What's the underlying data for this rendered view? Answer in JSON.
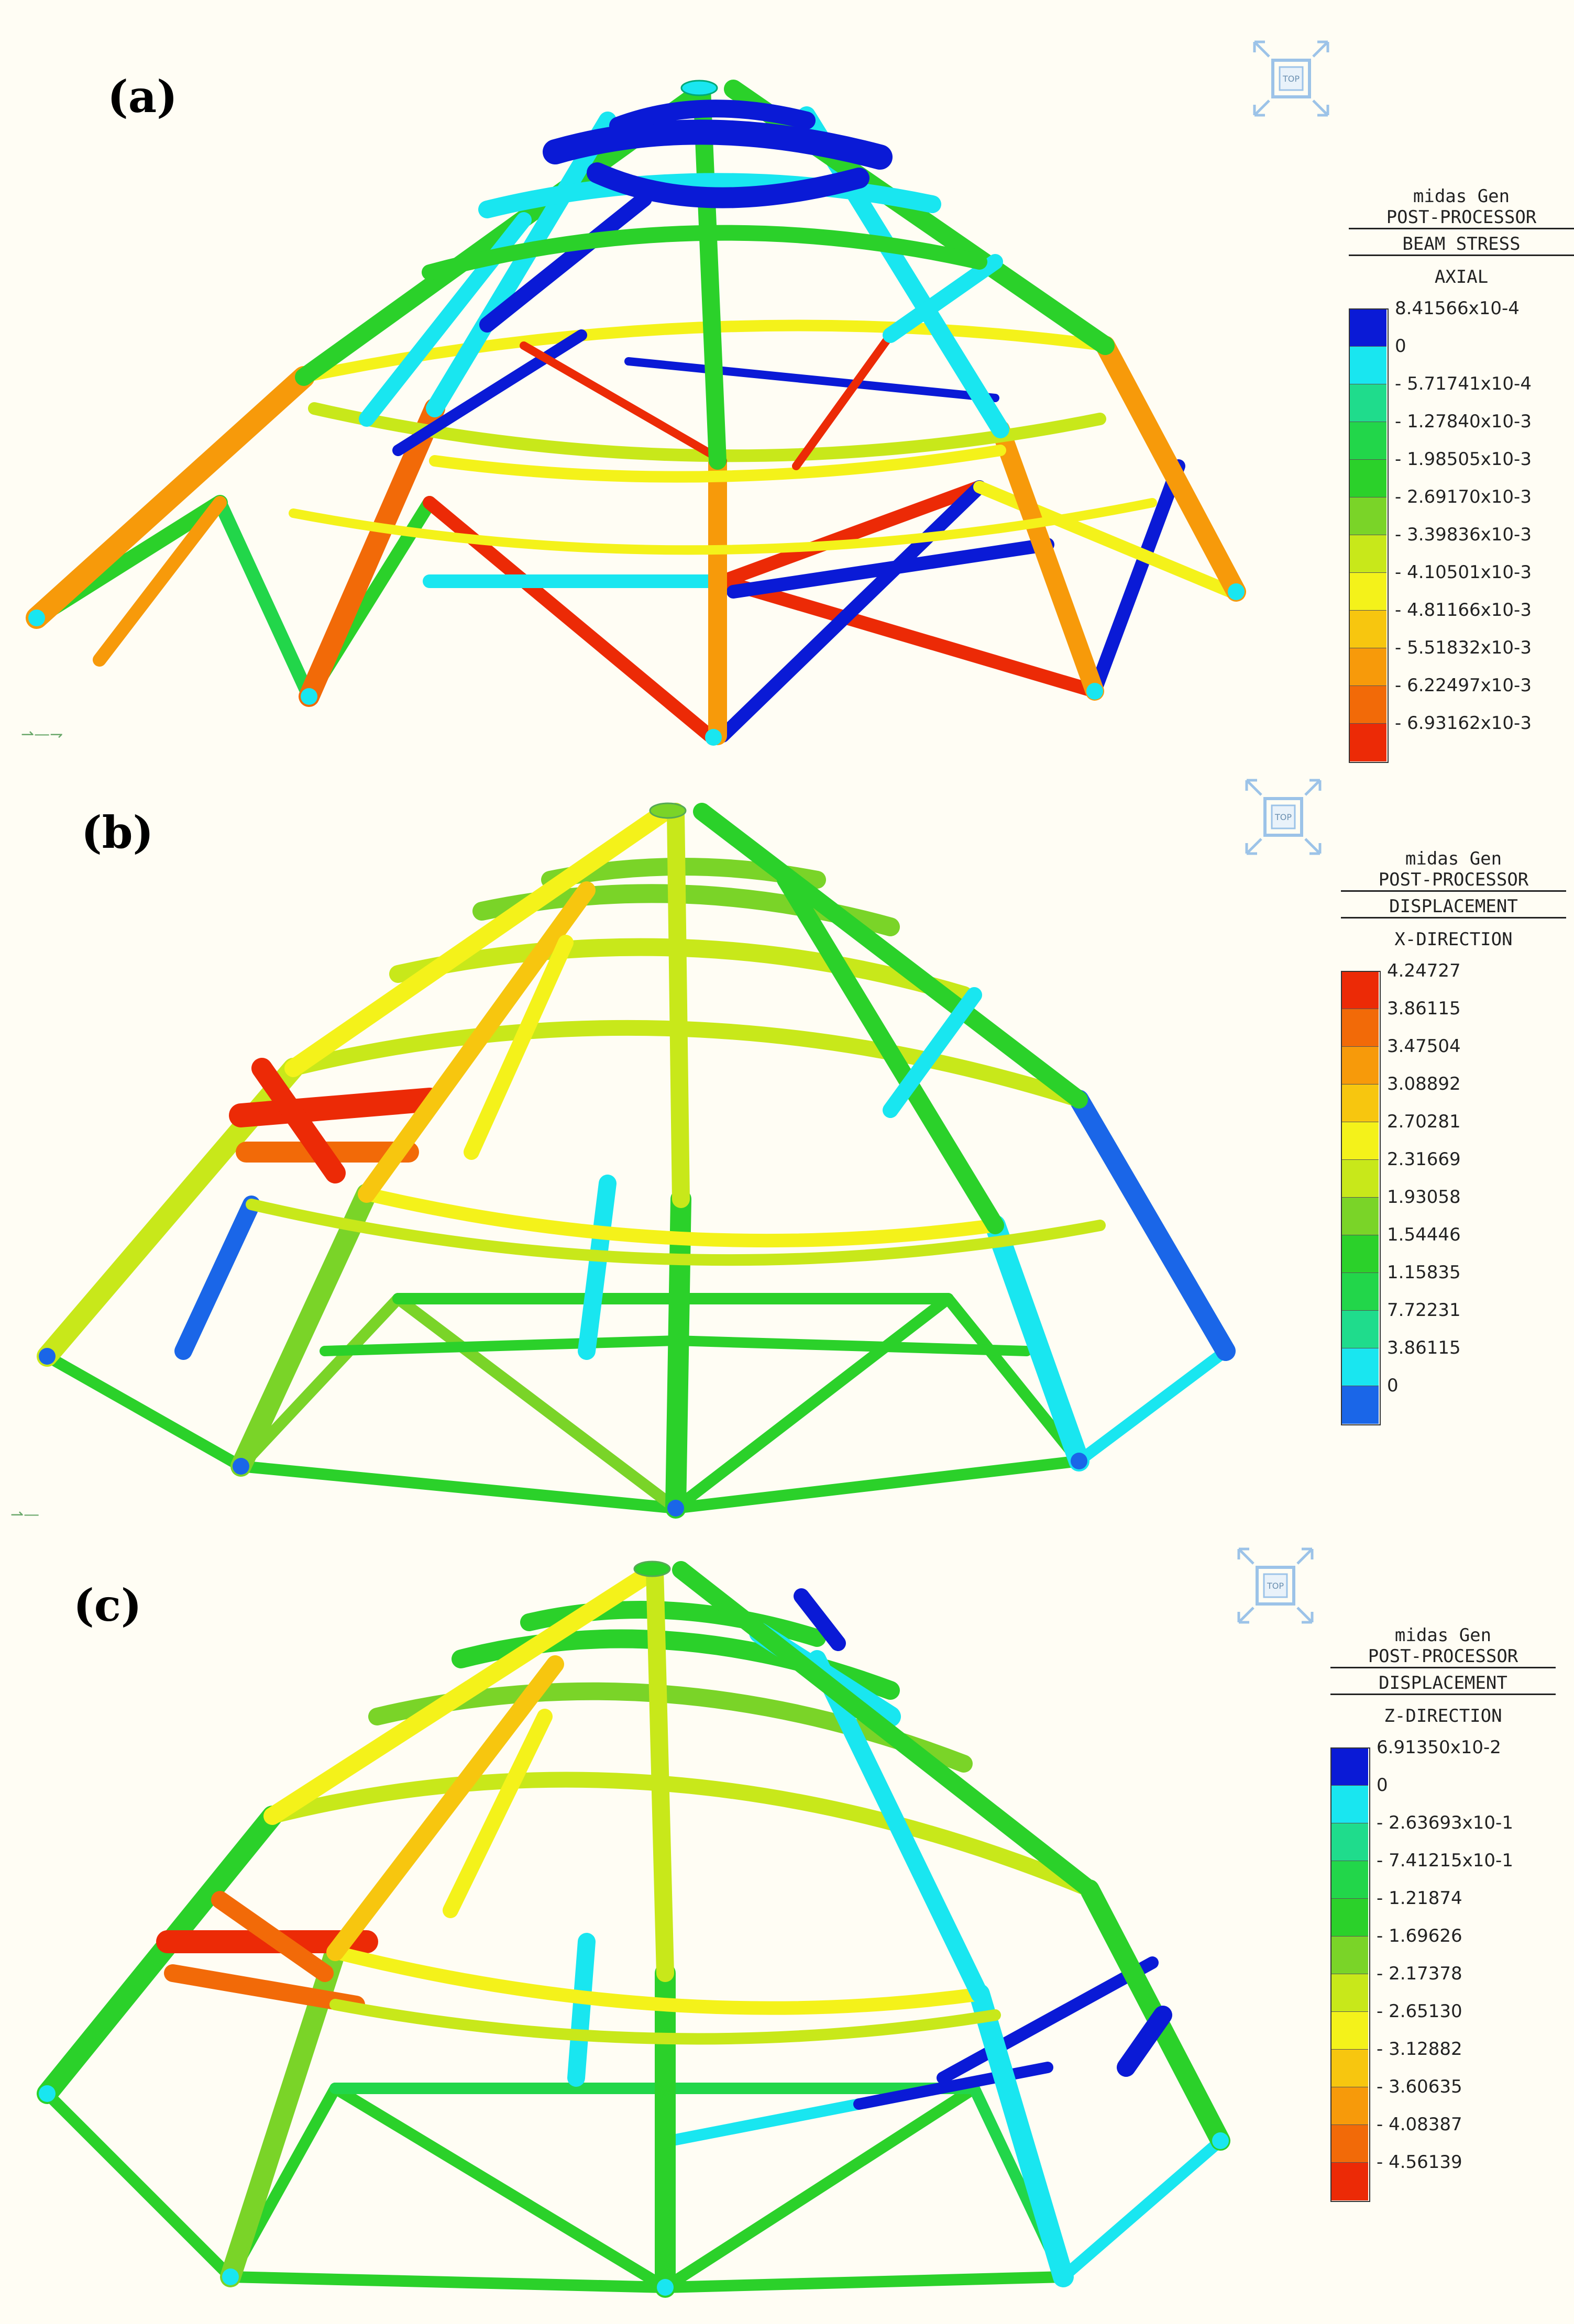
{
  "panels": [
    {
      "label": "(a)",
      "legend": {
        "app": "midas Gen",
        "mode": "POST-PROCESSOR",
        "result": "BEAM STRESS",
        "component": "AXIAL",
        "values": [
          "8.41566x10-4",
          "0",
          "- 5.71741x10-4",
          "- 1.27840x10-3",
          "- 1.98505x10-3",
          "- 2.69170x10-3",
          "- 3.39836x10-3",
          "- 4.10501x10-3",
          "- 4.81166x10-3",
          "- 5.51832x10-3",
          "- 6.22497x10-3",
          "- 6.93162x10-3"
        ],
        "colors": [
          "#0a1ad6",
          "#19e6f0",
          "#1fdc8c",
          "#22d64a",
          "#2bd12a",
          "#7ad428",
          "#c8e81a",
          "#f4f21a",
          "#f7c60f",
          "#f79a0a",
          "#f26a08",
          "#ec2a06"
        ]
      }
    },
    {
      "label": "(b)",
      "legend": {
        "app": "midas Gen",
        "mode": "POST-PROCESSOR",
        "result": "DISPLACEMENT",
        "component": "X-DIRECTION",
        "values": [
          "4.24727",
          "3.86115",
          "3.47504",
          "3.08892",
          "2.70281",
          "2.31669",
          "1.93058",
          "1.54446",
          "1.15835",
          "7.72231",
          "3.86115",
          "0"
        ],
        "colors": [
          "#ec2a06",
          "#f26a08",
          "#f79a0a",
          "#f7c60f",
          "#f4f21a",
          "#c8e81a",
          "#7ad428",
          "#2bd12a",
          "#22d64a",
          "#1fdc8c",
          "#19e6f0",
          "#1a66e8"
        ]
      }
    },
    {
      "label": "(c)",
      "legend": {
        "app": "midas Gen",
        "mode": "POST-PROCESSOR",
        "result": "DISPLACEMENT",
        "component": "Z-DIRECTION",
        "values": [
          "6.91350x10-2",
          "0",
          "- 2.63693x10-1",
          "- 7.41215x10-1",
          "- 1.21874",
          "- 1.69626",
          "- 2.17378",
          "- 2.65130",
          "- 3.12882",
          "- 3.60635",
          "- 4.08387",
          "- 4.56139"
        ],
        "colors": [
          "#0a1ad6",
          "#19e6f0",
          "#1fdc8c",
          "#22d64a",
          "#2bd12a",
          "#7ad428",
          "#c8e81a",
          "#f4f21a",
          "#f7c60f",
          "#f79a0a",
          "#f26a08",
          "#ec2a06"
        ]
      }
    }
  ],
  "icons": {
    "view_cube": "view-cube-top-icon",
    "axis_triad": "ucs-axis-icon"
  }
}
